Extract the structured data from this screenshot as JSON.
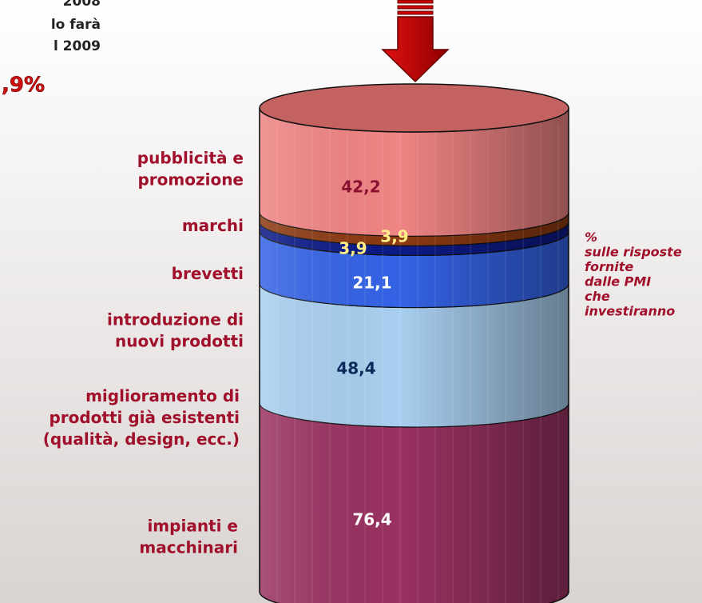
{
  "chart_data": {
    "type": "stacked-cylinder",
    "corner_texts": [
      "2008",
      "lo farà",
      "l 2009"
    ],
    "corner_highlight": ",9%",
    "categories": [
      "impianti e\nmacchinari",
      "miglioramento di\nprodotti già esistenti\n(qualità, design, ecc.)",
      "introduzione di\nnuovi prodotti",
      "brevetti",
      "marchi",
      "pubblicità e\npromozione"
    ],
    "values": [
      76.4,
      48.4,
      21.1,
      3.9,
      3.9,
      42.2
    ],
    "value_labels": [
      "76,4",
      "48,4",
      "21,1",
      "3,9",
      "3,9",
      "42,2"
    ],
    "colors": [
      "#9a3262",
      "#a9cff0",
      "#3463e6",
      "#0c1a86",
      "#8c3a12",
      "#f08484"
    ],
    "note": "%\nsulle risposte\nfornite\ndalle PMI\nche\ninvestiranno"
  }
}
